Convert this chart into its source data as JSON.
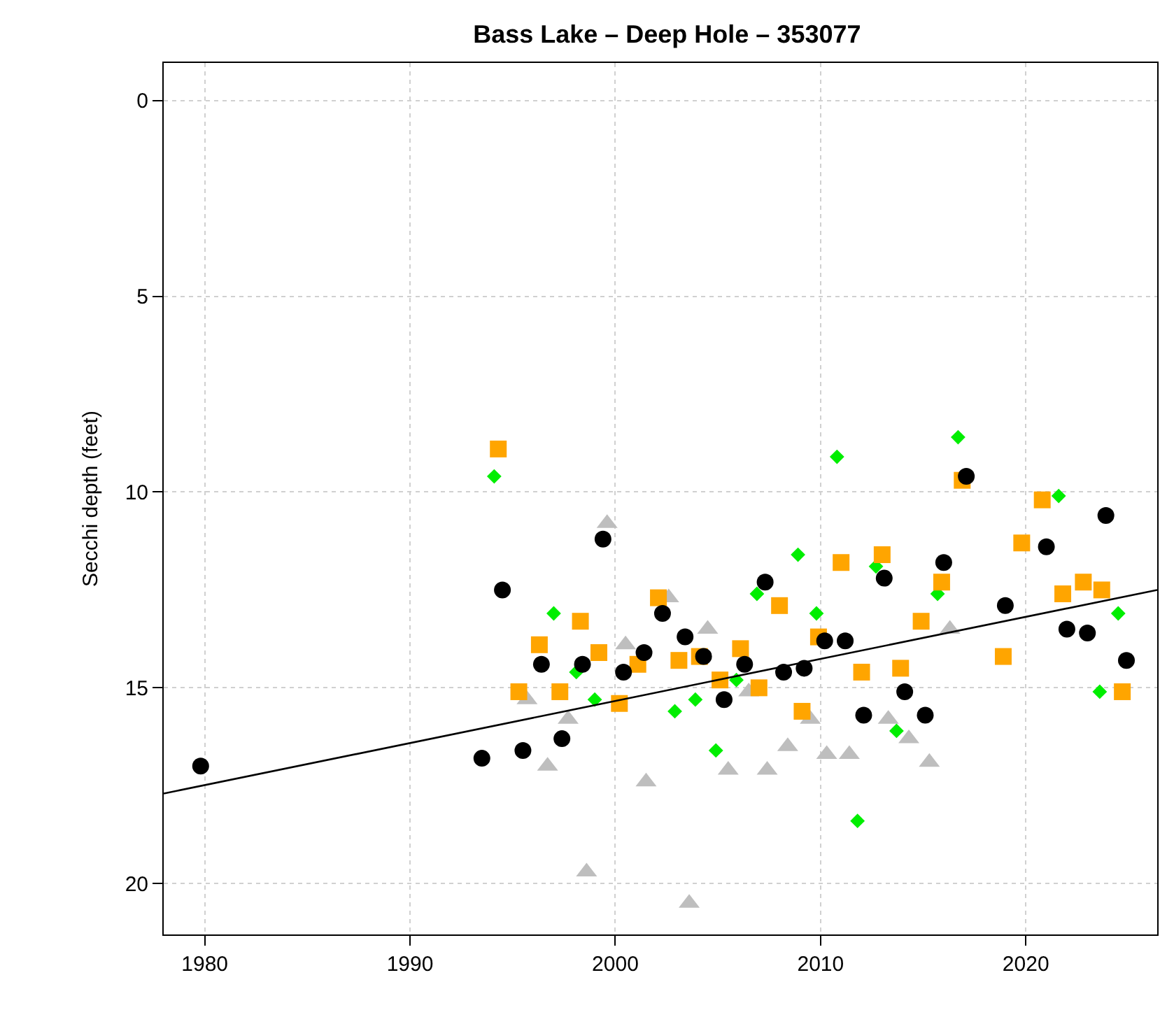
{
  "chart_data": {
    "type": "scatter",
    "title": "Bass Lake – Deep Hole – 353077",
    "ylabel": "Secchi depth (feet)",
    "xlim": [
      1978,
      2026.4
    ],
    "xticks": [
      1980,
      1990,
      2000,
      2010,
      2020
    ],
    "ylim": [
      21.3,
      -0.96
    ],
    "yticks": [
      0,
      5,
      10,
      15,
      20
    ],
    "grid": true,
    "legend": false,
    "series": [
      {
        "color": "#000000",
        "marker": "circle",
        "x": [
          1979.8,
          1993.5,
          1994.5,
          1995.5,
          1996.4,
          1997.4,
          1998.4,
          1999.4,
          2000.4,
          2001.4,
          2002.3,
          2003.4,
          2004.3,
          2005.3,
          2006.3,
          2007.3,
          2008.2,
          2009.2,
          2010.2,
          2011.2,
          2012.1,
          2013.1,
          2014.1,
          2015.1,
          2016.0,
          2017.1,
          2019.0,
          2021.0,
          2022.0,
          2023.0,
          2023.9,
          2024.9
        ],
        "values": [
          17.0,
          16.8,
          12.5,
          16.6,
          14.4,
          16.3,
          14.4,
          11.2,
          14.6,
          14.1,
          13.1,
          13.7,
          14.2,
          15.3,
          14.4,
          12.3,
          14.6,
          14.5,
          13.8,
          13.8,
          15.7,
          12.2,
          15.1,
          15.7,
          11.8,
          9.6,
          12.9,
          11.4,
          13.5,
          13.6,
          10.6,
          14.3
        ]
      },
      {
        "color": "#ffa500",
        "marker": "square",
        "x": [
          1994.3,
          1995.3,
          1996.3,
          1997.3,
          1998.3,
          1999.2,
          2000.2,
          2001.1,
          2002.1,
          2003.1,
          2004.1,
          2005.1,
          2006.1,
          2007.0,
          2008.0,
          2009.1,
          2009.9,
          2011.0,
          2012.0,
          2013.0,
          2013.9,
          2014.9,
          2015.9,
          2016.9,
          2018.9,
          2019.8,
          2020.8,
          2021.8,
          2022.8,
          2023.7,
          2024.7
        ],
        "values": [
          8.9,
          15.1,
          13.9,
          15.1,
          13.3,
          14.1,
          15.4,
          14.4,
          12.7,
          14.3,
          14.2,
          14.8,
          14.0,
          15.0,
          12.9,
          15.6,
          13.7,
          11.8,
          14.6,
          11.6,
          14.5,
          13.3,
          12.3,
          9.7,
          14.2,
          11.3,
          10.2,
          12.6,
          12.3,
          12.5,
          15.1
        ]
      },
      {
        "color": "#00ee00",
        "marker": "diamond",
        "x": [
          1994.1,
          1997.0,
          1998.1,
          1999.0,
          2002.9,
          2003.9,
          2004.9,
          2005.9,
          2006.9,
          2008.9,
          2009.8,
          2010.8,
          2011.8,
          2012.7,
          2013.7,
          2015.7,
          2016.7,
          2021.6,
          2023.6,
          2024.5
        ],
        "values": [
          9.6,
          13.1,
          14.6,
          15.3,
          15.6,
          15.3,
          16.6,
          14.8,
          12.6,
          11.6,
          13.1,
          9.1,
          18.4,
          11.9,
          16.1,
          12.6,
          8.6,
          10.1,
          15.1,
          13.1
        ]
      },
      {
        "color": "#bebebe",
        "marker": "triangle",
        "x": [
          1995.7,
          1996.7,
          1997.7,
          1998.6,
          1999.6,
          2000.5,
          2001.5,
          2002.6,
          2003.6,
          2004.5,
          2005.5,
          2006.5,
          2007.4,
          2008.4,
          2009.5,
          2010.3,
          2011.4,
          2013.3,
          2014.3,
          2015.3,
          2016.3
        ],
        "values": [
          15.3,
          17.0,
          15.8,
          19.7,
          10.8,
          13.9,
          17.4,
          12.7,
          20.5,
          13.5,
          17.1,
          15.1,
          17.1,
          16.5,
          15.8,
          16.7,
          16.7,
          15.8,
          16.3,
          16.9,
          13.5
        ]
      },
      {
        "type": "line",
        "color": "#000000",
        "marker": "none",
        "line_style": "solid",
        "x": [
          1978,
          2026.4
        ],
        "values": [
          17.7,
          12.5
        ]
      }
    ]
  }
}
